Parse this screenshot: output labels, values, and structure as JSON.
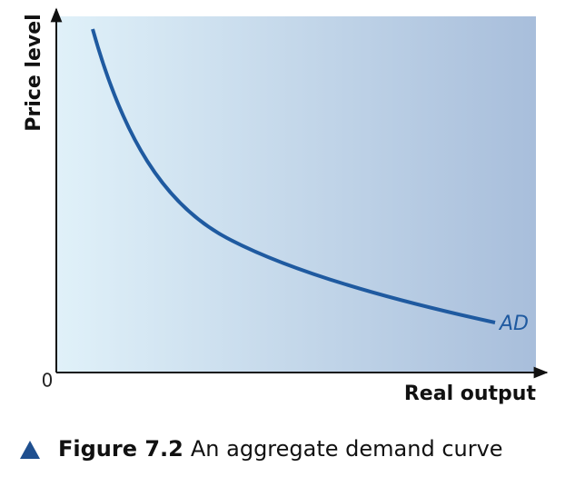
{
  "axes": {
    "y_label": "Price level",
    "x_label": "Real output",
    "origin": "0"
  },
  "curve": {
    "label": "AD"
  },
  "caption": {
    "number": "Figure 7.2",
    "text": "An aggregate demand curve"
  }
}
